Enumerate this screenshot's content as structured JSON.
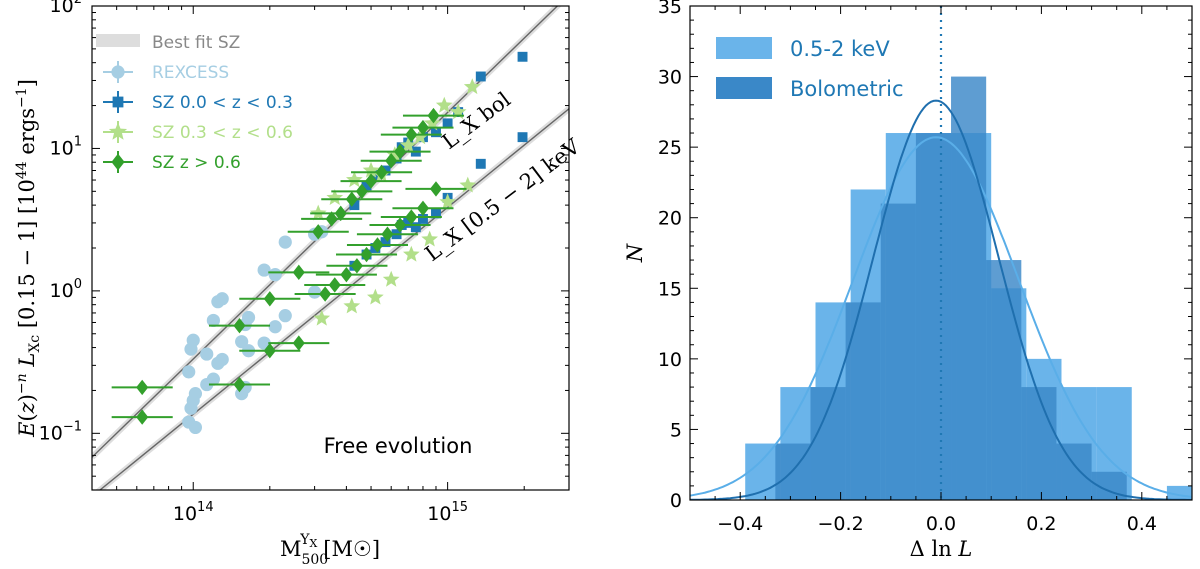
{
  "chart_data": [
    {
      "type": "scatter",
      "xscale": "log",
      "yscale": "log",
      "xlim": [
        40000000000000.0,
        3000000000000000.0
      ],
      "ylim": [
        0.04,
        100
      ],
      "xlabel": "M500^Yx [M☉]",
      "ylabel": "E(z)^-n L_Xc [0.15 − 1] [10^44 ergs^-1]",
      "x_ticks": [
        {
          "v": 100000000000000.0,
          "b": "10",
          "e": "14"
        },
        {
          "v": 1000000000000000.0,
          "b": "10",
          "e": "15"
        }
      ],
      "y_ticks": [
        {
          "v": 0.1,
          "b": "10",
          "e": "−1"
        },
        {
          "v": 1,
          "b": "10",
          "e": "0"
        },
        {
          "v": 10,
          "b": "10",
          "e": "1"
        },
        {
          "v": 100,
          "b": "10",
          "e": "2"
        }
      ],
      "annotation": "Free evolution",
      "line_labels": {
        "bol": "L_X bol",
        "soft": "L_X [0.5 − 2] keV"
      },
      "legend": [
        {
          "key": "fit",
          "label": "Best fit SZ",
          "color": "#bbbbbb"
        },
        {
          "key": "rexcess",
          "label": "REXCESS",
          "color": "#a6cee3"
        },
        {
          "key": "szlow",
          "label": "SZ 0.0 < z < 0.3",
          "color": "#1f78b4"
        },
        {
          "key": "szmid",
          "label": "SZ 0.3 < z < 0.6",
          "color": "#b2df8a"
        },
        {
          "key": "szhigh",
          "label": "SZ z > 0.6",
          "color": "#33a02c"
        }
      ],
      "fit_lines": [
        {
          "name": "Lx bol",
          "x": [
            40000000000000.0,
            3000000000000000.0
          ],
          "y": [
            0.068,
            120
          ]
        },
        {
          "name": "Lx 0.5-2 keV",
          "x": [
            40000000000000.0,
            3000000000000000.0
          ],
          "y": [
            0.036,
            19
          ]
        }
      ],
      "series": [
        {
          "key": "rexcess",
          "name": "REXCESS",
          "color": "#a6cee3",
          "marker": "circle",
          "x": [
            96000000000000.0,
            98000000000000.0,
            100000000000000.0,
            102000000000000.0,
            113000000000000.0,
            120000000000000.0,
            125000000000000.0,
            130000000000000.0,
            155000000000000.0,
            160000000000000.0,
            165000000000000.0,
            190000000000000.0,
            210000000000000.0,
            230000000000000.0,
            300000000000000.0,
            320000000000000.0,
            96000000000000.0,
            98000000000000.0,
            100000000000000.0,
            102000000000000.0,
            113000000000000.0,
            120000000000000.0,
            125000000000000.0,
            130000000000000.0,
            155000000000000.0,
            160000000000000.0,
            165000000000000.0,
            190000000000000.0,
            210000000000000.0,
            230000000000000.0,
            300000000000000.0
          ],
          "y": [
            0.27,
            0.39,
            0.45,
            0.11,
            0.36,
            0.62,
            0.84,
            0.88,
            0.44,
            0.58,
            0.65,
            1.4,
            1.3,
            2.2,
            2.5,
            2.6,
            0.12,
            0.15,
            0.17,
            0.19,
            0.22,
            0.24,
            0.31,
            0.33,
            0.19,
            0.21,
            0.38,
            0.43,
            0.56,
            0.67,
            0.98
          ]
        },
        {
          "key": "szlow",
          "name": "SZ 0.0 < z < 0.3",
          "color": "#1f78b4",
          "marker": "square",
          "x": [
            430000000000000.0,
            480000000000000.0,
            520000000000000.0,
            570000000000000.0,
            630000000000000.0,
            660000000000000.0,
            700000000000000.0,
            750000000000000.0,
            800000000000000.0,
            900000000000000.0,
            1000000000000000.0,
            1100000000000000.0,
            1350000000000000.0,
            1970000000000000.0,
            430000000000000.0,
            480000000000000.0,
            520000000000000.0,
            570000000000000.0,
            630000000000000.0,
            660000000000000.0,
            700000000000000.0,
            750000000000000.0,
            800000000000000.0,
            900000000000000.0,
            1000000000000000.0,
            1350000000000000.0,
            1970000000000000.0
          ],
          "y": [
            4.0,
            5.5,
            6.5,
            7.0,
            8.5,
            10.2,
            11,
            9.5,
            12,
            13,
            15,
            18,
            32,
            44,
            1.5,
            1.8,
            2.0,
            2.2,
            2.5,
            2.9,
            3.0,
            2.8,
            3.2,
            3.5,
            4.5,
            7.8,
            12
          ]
        },
        {
          "key": "szmid",
          "name": "SZ 0.3 < z < 0.6",
          "color": "#b2df8a",
          "marker": "star",
          "x": [
            310000000000000.0,
            360000000000000.0,
            430000000000000.0,
            500000000000000.0,
            550000000000000.0,
            620000000000000.0,
            700000000000000.0,
            780000000000000.0,
            870000000000000.0,
            970000000000000.0,
            1100000000000000.0,
            1250000000000000.0,
            320000000000000.0,
            420000000000000.0,
            520000000000000.0,
            600000000000000.0,
            720000000000000.0,
            850000000000000.0,
            1000000000000000.0,
            1200000000000000.0
          ],
          "y": [
            3.5,
            4.5,
            6.0,
            7.0,
            6.5,
            9.0,
            10.5,
            12,
            15,
            20,
            18,
            27,
            0.64,
            0.78,
            0.9,
            1.2,
            1.8,
            2.3,
            4.2,
            5.5
          ]
        },
        {
          "key": "szhigh",
          "name": "SZ z > 0.6",
          "color": "#33a02c",
          "marker": "diamond",
          "xerr": 0.12,
          "x": [
            63000000000000.0,
            63000000000000.0,
            152000000000000.0,
            200000000000000.0,
            260000000000000.0,
            310000000000000.0,
            350000000000000.0,
            380000000000000.0,
            420000000000000.0,
            460000000000000.0,
            500000000000000.0,
            550000000000000.0,
            600000000000000.0,
            650000000000000.0,
            720000000000000.0,
            800000000000000.0,
            880000000000000.0,
            330000000000000.0,
            360000000000000.0,
            400000000000000.0,
            440000000000000.0,
            480000000000000.0,
            530000000000000.0,
            580000000000000.0,
            650000000000000.0,
            720000000000000.0,
            800000000000000.0,
            900000000000000.0,
            152000000000000.0,
            200000000000000.0,
            260000000000000.0
          ],
          "y": [
            0.21,
            0.13,
            0.57,
            0.88,
            1.35,
            2.6,
            3.2,
            3.5,
            4.4,
            5.0,
            5.9,
            6.8,
            8.2,
            9.5,
            12.5,
            14,
            17,
            0.95,
            1.1,
            1.3,
            1.5,
            1.8,
            2.1,
            2.5,
            2.9,
            3.3,
            3.8,
            5.2,
            0.22,
            0.38,
            0.43
          ]
        }
      ]
    },
    {
      "type": "bar",
      "xlim": [
        -0.5,
        0.5
      ],
      "ylim": [
        0,
        35
      ],
      "xlabel": "Δ ln L",
      "ylabel": "N",
      "x_ticks": [
        -0.4,
        -0.2,
        0.0,
        0.2,
        0.4
      ],
      "x_tick_labels": [
        "−0.4",
        "−0.2",
        "0.0",
        "0.2",
        "0.4"
      ],
      "y_ticks": [
        0,
        5,
        10,
        15,
        20,
        25,
        30,
        35
      ],
      "vline": 0.0,
      "series": [
        {
          "name": "0.5-2 keV",
          "color": "#6ab4ea",
          "bins": [
            [
              -0.39,
              -0.32,
              4
            ],
            [
              -0.32,
              -0.25,
              8
            ],
            [
              -0.25,
              -0.18,
              14
            ],
            [
              -0.18,
              -0.11,
              22
            ],
            [
              -0.11,
              -0.04,
              26
            ],
            [
              -0.04,
              0.03,
              26
            ],
            [
              0.03,
              0.1,
              26
            ],
            [
              0.1,
              0.17,
              15
            ],
            [
              0.17,
              0.24,
              10
            ],
            [
              0.24,
              0.31,
              8
            ],
            [
              0.31,
              0.38,
              8
            ],
            [
              0.38,
              0.45,
              0
            ],
            [
              0.45,
              0.5,
              1
            ]
          ],
          "gauss": {
            "mu": -0.01,
            "sigma": 0.165,
            "peak": 25.7
          }
        },
        {
          "name": "Bolometric",
          "color": "#3a88c8",
          "bins": [
            [
              -0.33,
              -0.26,
              4
            ],
            [
              -0.26,
              -0.19,
              8
            ],
            [
              -0.19,
              -0.12,
              14
            ],
            [
              -0.12,
              -0.05,
              21
            ],
            [
              -0.05,
              0.02,
              26
            ],
            [
              0.02,
              0.09,
              30
            ],
            [
              0.09,
              0.16,
              17
            ],
            [
              0.16,
              0.23,
              8
            ],
            [
              0.23,
              0.3,
              4
            ],
            [
              0.3,
              0.37,
              2
            ]
          ],
          "gauss": {
            "mu": -0.01,
            "sigma": 0.125,
            "peak": 28.3
          }
        }
      ]
    }
  ]
}
